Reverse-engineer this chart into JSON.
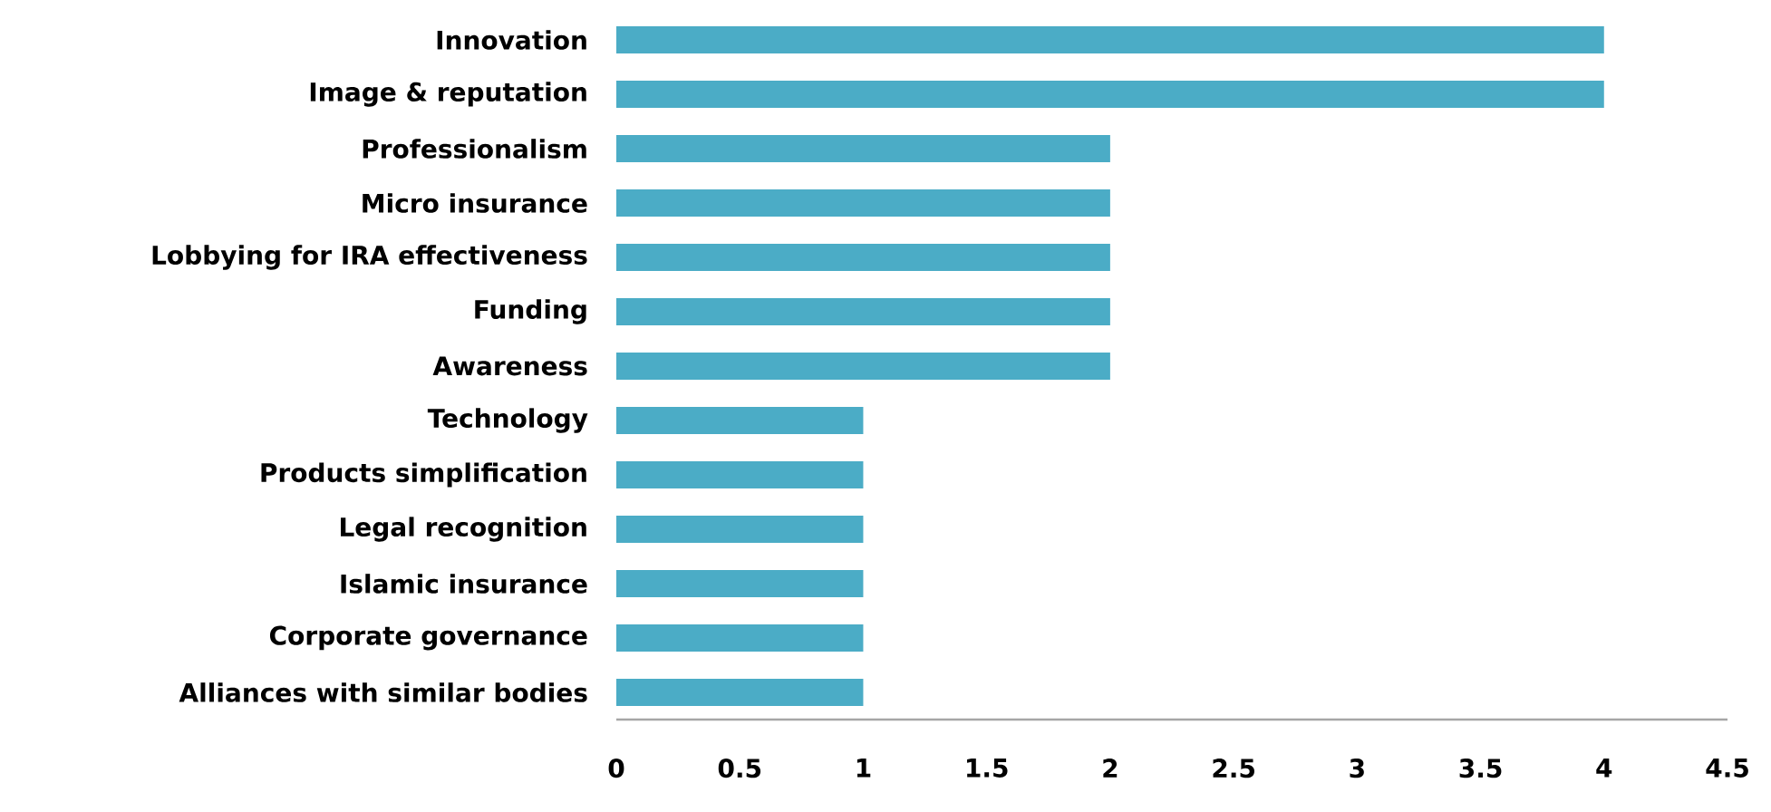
{
  "chart_data": {
    "type": "bar",
    "orientation": "horizontal",
    "categories": [
      "Innovation",
      "Image & reputation",
      "Professionalism",
      "Micro insurance",
      "Lobbying for IRA effectiveness",
      "Funding",
      "Awareness",
      "Technology",
      "Products simplification",
      "Legal recognition",
      "Islamic insurance",
      "Corporate governance",
      "Alliances with similar bodies"
    ],
    "values": [
      4,
      4,
      2,
      2,
      2,
      2,
      2,
      1,
      1,
      1,
      1,
      1,
      1
    ],
    "color": "#4bacc6",
    "xlim": [
      0,
      4.5
    ],
    "xticks": [
      0,
      0.5,
      1,
      1.5,
      2,
      2.5,
      3,
      3.5,
      4,
      4.5
    ]
  }
}
